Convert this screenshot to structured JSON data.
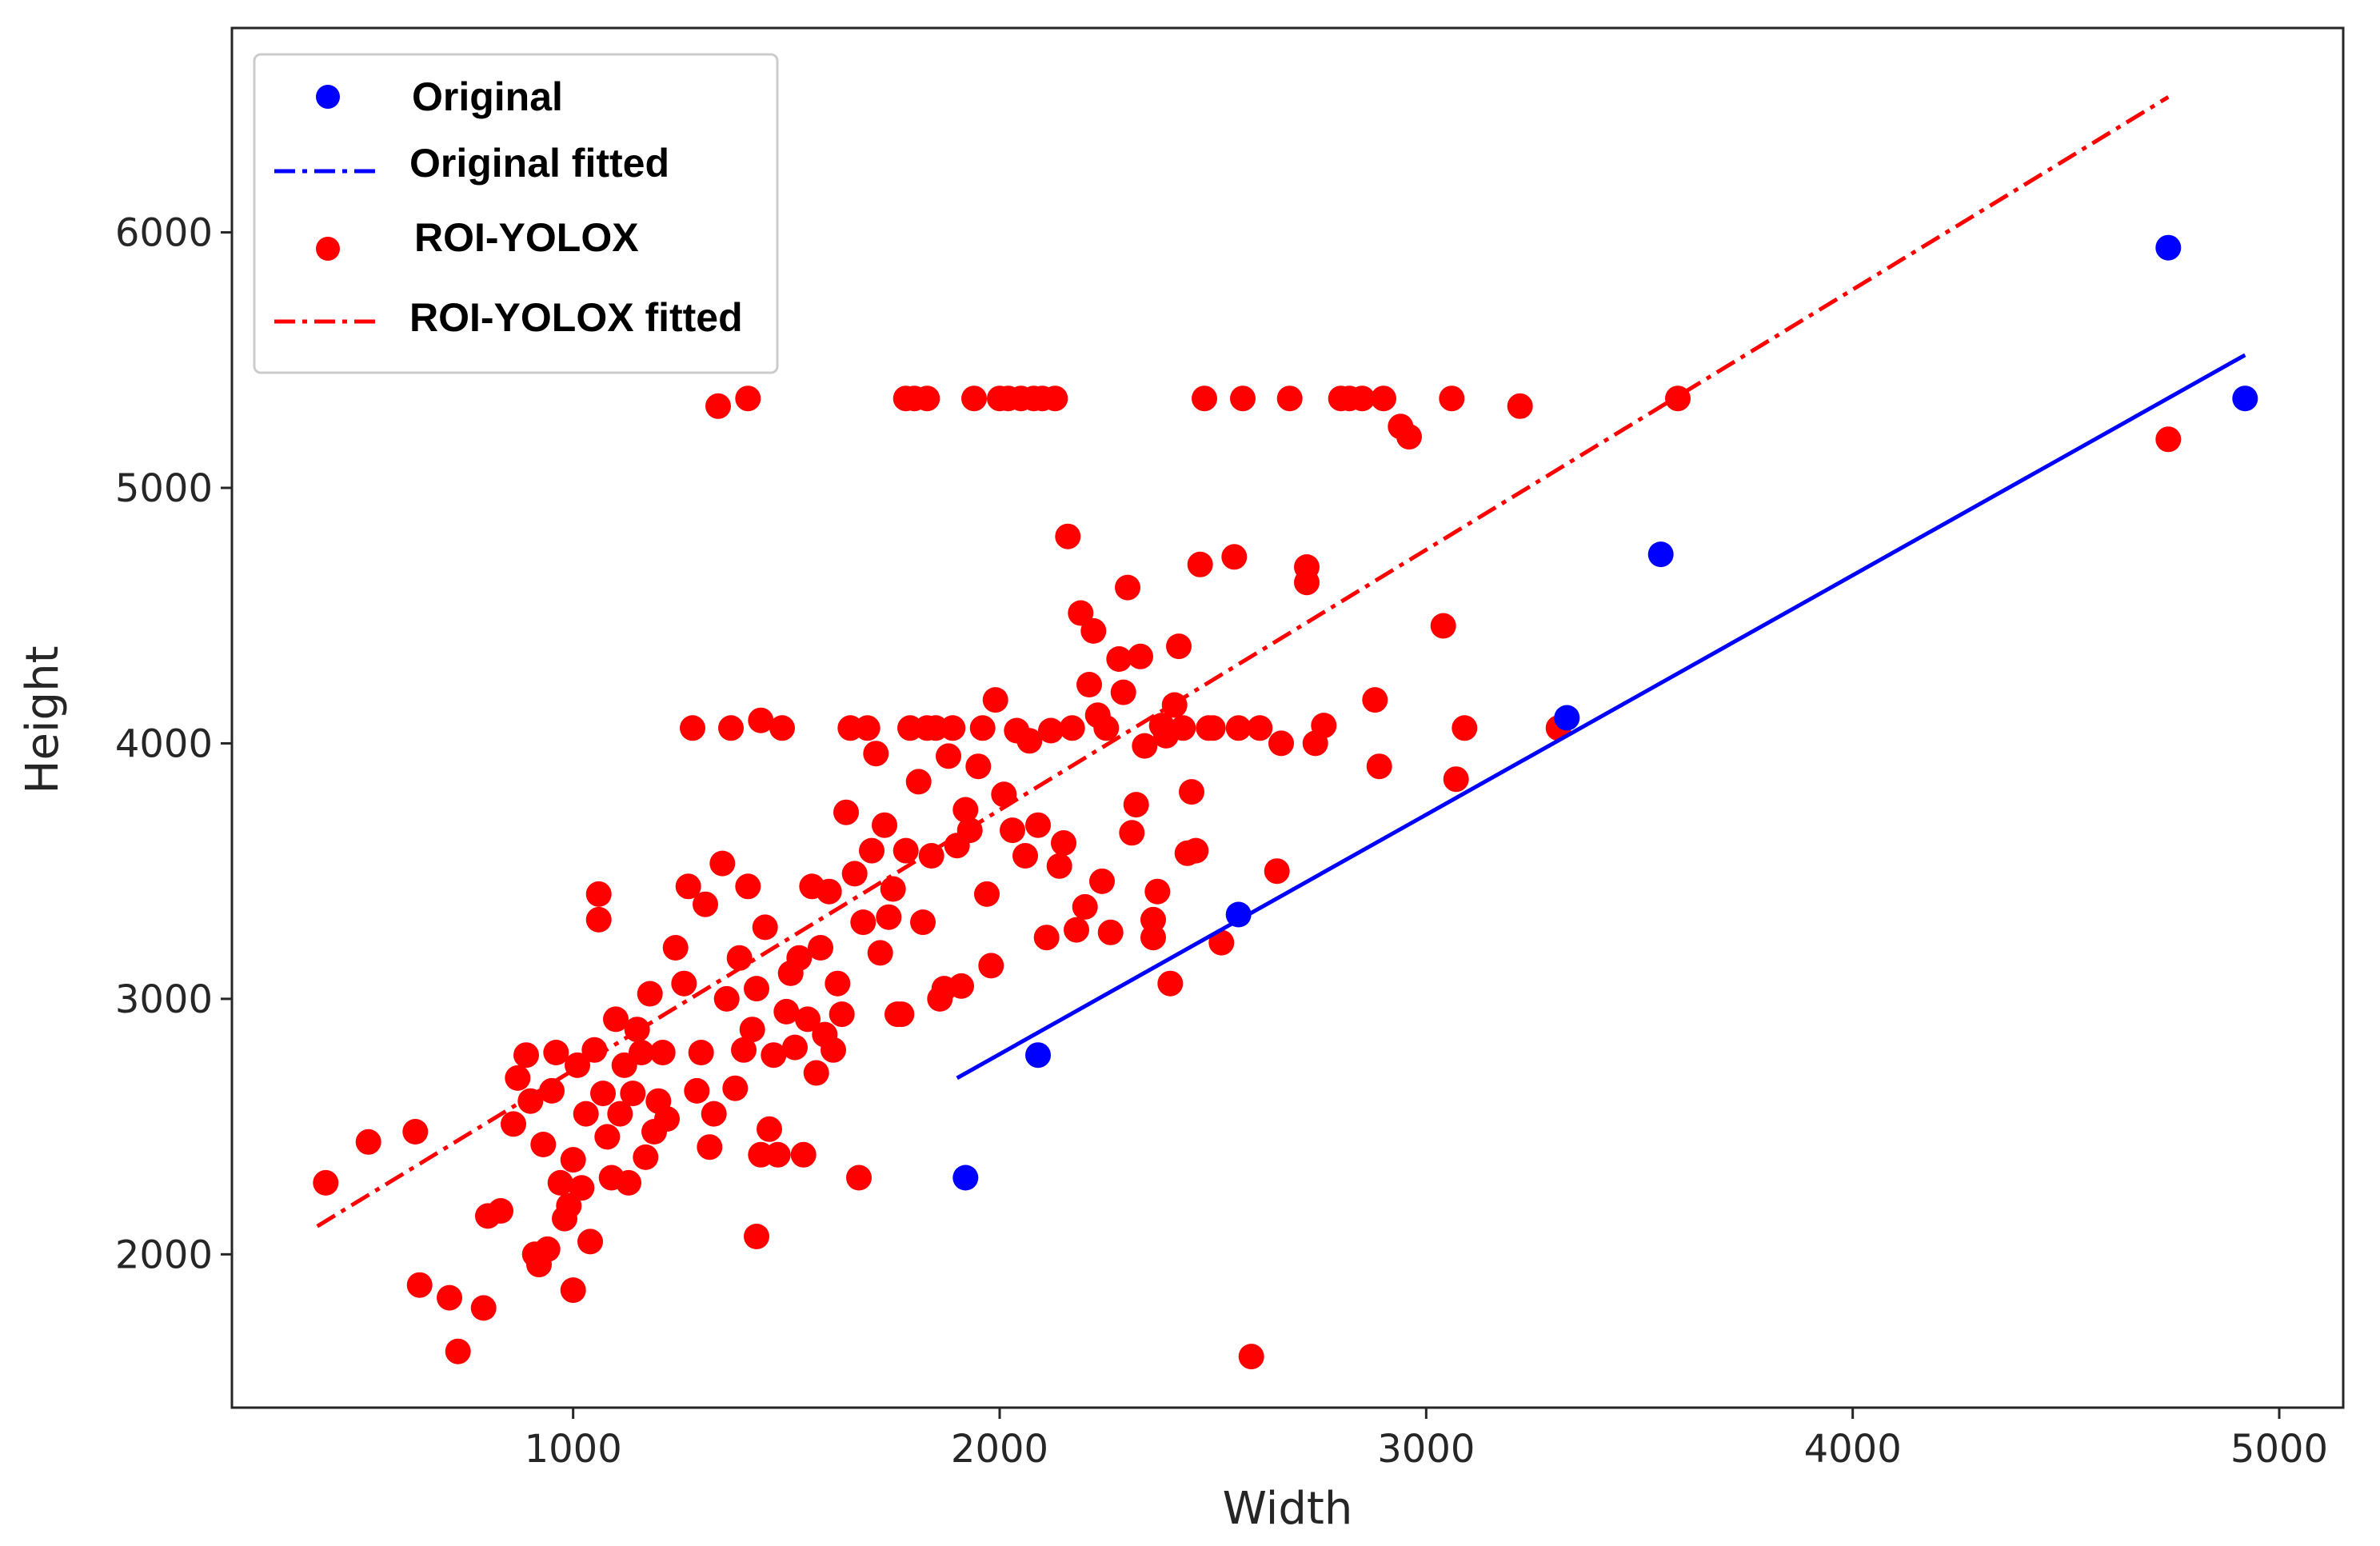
{
  "chart_data": {
    "type": "scatter",
    "xlabel": "Width",
    "ylabel": "Height",
    "xlim": [
      200,
      5150
    ],
    "ylim": [
      1400,
      6800
    ],
    "xticks": [
      1000,
      2000,
      3000,
      4000,
      5000
    ],
    "yticks": [
      2000,
      3000,
      4000,
      5000,
      6000
    ],
    "grid": false,
    "legend_position": "top-left",
    "legend": [
      {
        "label": "Original",
        "kind": "marker",
        "color": "#0000ff"
      },
      {
        "label": "Original fitted",
        "kind": "line",
        "color": "#0000ff"
      },
      {
        "label": "ROI-YOLOX",
        "kind": "marker",
        "color": "#ff0000"
      },
      {
        "label": "ROI-YOLOX fitted",
        "kind": "line",
        "color": "#ff0000"
      }
    ],
    "series": [
      {
        "name": "Original",
        "color": "#0000ff",
        "points": [
          [
            1920,
            2300
          ],
          [
            2090,
            2780
          ],
          [
            2560,
            3330
          ],
          [
            3330,
            4100
          ],
          [
            3550,
            4740
          ],
          [
            4740,
            5940
          ],
          [
            4920,
            5350
          ]
        ]
      },
      {
        "name": "Original fitted",
        "color": "#0000ff",
        "line": [
          [
            1900,
            2690
          ],
          [
            4920,
            5520
          ]
        ]
      },
      {
        "name": "ROI-YOLOX",
        "color": "#ff0000",
        "points": [
          [
            420,
            2280
          ],
          [
            520,
            2440
          ],
          [
            630,
            2480
          ],
          [
            640,
            1880
          ],
          [
            710,
            1830
          ],
          [
            730,
            1620
          ],
          [
            790,
            1790
          ],
          [
            800,
            2150
          ],
          [
            830,
            2170
          ],
          [
            860,
            2510
          ],
          [
            870,
            2690
          ],
          [
            890,
            2780
          ],
          [
            900,
            2600
          ],
          [
            910,
            2000
          ],
          [
            920,
            1960
          ],
          [
            930,
            2430
          ],
          [
            940,
            2020
          ],
          [
            950,
            2640
          ],
          [
            960,
            2790
          ],
          [
            970,
            2280
          ],
          [
            980,
            2140
          ],
          [
            990,
            2190
          ],
          [
            1000,
            2370
          ],
          [
            1000,
            1860
          ],
          [
            1010,
            2740
          ],
          [
            1020,
            2260
          ],
          [
            1030,
            2550
          ],
          [
            1040,
            2050
          ],
          [
            1050,
            2800
          ],
          [
            1060,
            3310
          ],
          [
            1060,
            3410
          ],
          [
            1070,
            2630
          ],
          [
            1080,
            2460
          ],
          [
            1090,
            2300
          ],
          [
            1100,
            2920
          ],
          [
            1110,
            2550
          ],
          [
            1120,
            2740
          ],
          [
            1130,
            2280
          ],
          [
            1140,
            2630
          ],
          [
            1150,
            2880
          ],
          [
            1160,
            2790
          ],
          [
            1170,
            2380
          ],
          [
            1180,
            3020
          ],
          [
            1190,
            2480
          ],
          [
            1200,
            2600
          ],
          [
            1210,
            2790
          ],
          [
            1220,
            2530
          ],
          [
            1240,
            3200
          ],
          [
            1260,
            3060
          ],
          [
            1270,
            3440
          ],
          [
            1280,
            4060
          ],
          [
            1290,
            2640
          ],
          [
            1300,
            2790
          ],
          [
            1310,
            3370
          ],
          [
            1320,
            2420
          ],
          [
            1330,
            2550
          ],
          [
            1340,
            5320
          ],
          [
            1350,
            3530
          ],
          [
            1360,
            3000
          ],
          [
            1370,
            4060
          ],
          [
            1380,
            2650
          ],
          [
            1390,
            3160
          ],
          [
            1400,
            2800
          ],
          [
            1410,
            3440
          ],
          [
            1410,
            5350
          ],
          [
            1420,
            2880
          ],
          [
            1430,
            3040
          ],
          [
            1430,
            2070
          ],
          [
            1440,
            4090
          ],
          [
            1440,
            2390
          ],
          [
            1450,
            3280
          ],
          [
            1460,
            2490
          ],
          [
            1470,
            2780
          ],
          [
            1480,
            2390
          ],
          [
            1490,
            4060
          ],
          [
            1500,
            2950
          ],
          [
            1510,
            3100
          ],
          [
            1520,
            2810
          ],
          [
            1530,
            3160
          ],
          [
            1540,
            2390
          ],
          [
            1550,
            2920
          ],
          [
            1560,
            3440
          ],
          [
            1570,
            2710
          ],
          [
            1580,
            3200
          ],
          [
            1590,
            2860
          ],
          [
            1600,
            3420
          ],
          [
            1610,
            2800
          ],
          [
            1620,
            3060
          ],
          [
            1630,
            2940
          ],
          [
            1640,
            3730
          ],
          [
            1650,
            4060
          ],
          [
            1660,
            3490
          ],
          [
            1670,
            2300
          ],
          [
            1680,
            3300
          ],
          [
            1690,
            4060
          ],
          [
            1700,
            3580
          ],
          [
            1710,
            3960
          ],
          [
            1720,
            3180
          ],
          [
            1730,
            3680
          ],
          [
            1740,
            3320
          ],
          [
            1750,
            3430
          ],
          [
            1760,
            2940
          ],
          [
            1770,
            2940
          ],
          [
            1780,
            3580
          ],
          [
            1780,
            5350
          ],
          [
            1790,
            4060
          ],
          [
            1800,
            5350
          ],
          [
            1810,
            3850
          ],
          [
            1820,
            3300
          ],
          [
            1830,
            5350
          ],
          [
            1830,
            4060
          ],
          [
            1840,
            3560
          ],
          [
            1850,
            4060
          ],
          [
            1860,
            3000
          ],
          [
            1870,
            3040
          ],
          [
            1880,
            3950
          ],
          [
            1890,
            4060
          ],
          [
            1900,
            3600
          ],
          [
            1910,
            3050
          ],
          [
            1920,
            3740
          ],
          [
            1930,
            3660
          ],
          [
            1940,
            5350
          ],
          [
            1950,
            3910
          ],
          [
            1960,
            4060
          ],
          [
            1970,
            3410
          ],
          [
            1980,
            3130
          ],
          [
            1990,
            4170
          ],
          [
            2000,
            5350
          ],
          [
            2010,
            3800
          ],
          [
            2020,
            5350
          ],
          [
            2030,
            3660
          ],
          [
            2040,
            4050
          ],
          [
            2050,
            5350
          ],
          [
            2060,
            3560
          ],
          [
            2070,
            4010
          ],
          [
            2080,
            5350
          ],
          [
            2090,
            3680
          ],
          [
            2100,
            5350
          ],
          [
            2110,
            3240
          ],
          [
            2120,
            4050
          ],
          [
            2130,
            5350
          ],
          [
            2140,
            3520
          ],
          [
            2150,
            3610
          ],
          [
            2160,
            4810
          ],
          [
            2170,
            4060
          ],
          [
            2180,
            3270
          ],
          [
            2190,
            4510
          ],
          [
            2200,
            3360
          ],
          [
            2210,
            4230
          ],
          [
            2220,
            4440
          ],
          [
            2230,
            4110
          ],
          [
            2240,
            3460
          ],
          [
            2250,
            4060
          ],
          [
            2260,
            3260
          ],
          [
            2280,
            4330
          ],
          [
            2290,
            4200
          ],
          [
            2300,
            4610
          ],
          [
            2310,
            3650
          ],
          [
            2320,
            3760
          ],
          [
            2330,
            4340
          ],
          [
            2340,
            3990
          ],
          [
            2360,
            3310
          ],
          [
            2360,
            3240
          ],
          [
            2370,
            3420
          ],
          [
            2380,
            4070
          ],
          [
            2390,
            4030
          ],
          [
            2400,
            3060
          ],
          [
            2410,
            4150
          ],
          [
            2420,
            4380
          ],
          [
            2430,
            4060
          ],
          [
            2440,
            3570
          ],
          [
            2450,
            3810
          ],
          [
            2460,
            3580
          ],
          [
            2470,
            4700
          ],
          [
            2480,
            5350
          ],
          [
            2490,
            4060
          ],
          [
            2500,
            4060
          ],
          [
            2520,
            3220
          ],
          [
            2550,
            4730
          ],
          [
            2560,
            4060
          ],
          [
            2570,
            5350
          ],
          [
            2590,
            1600
          ],
          [
            2610,
            4060
          ],
          [
            2650,
            3500
          ],
          [
            2660,
            4000
          ],
          [
            2680,
            5350
          ],
          [
            2720,
            4690
          ],
          [
            2720,
            4630
          ],
          [
            2740,
            4000
          ],
          [
            2760,
            4070
          ],
          [
            2800,
            5350
          ],
          [
            2820,
            5350
          ],
          [
            2850,
            5350
          ],
          [
            2880,
            4170
          ],
          [
            2890,
            3910
          ],
          [
            2900,
            5350
          ],
          [
            2940,
            5240
          ],
          [
            2960,
            5200
          ],
          [
            3040,
            4460
          ],
          [
            3060,
            5350
          ],
          [
            3070,
            3860
          ],
          [
            3090,
            4060
          ],
          [
            3220,
            5320
          ],
          [
            3310,
            4060
          ],
          [
            3590,
            5350
          ],
          [
            4740,
            5190
          ]
        ]
      },
      {
        "name": "ROI-YOLOX fitted",
        "color": "#ff0000",
        "line": [
          [
            400,
            2110
          ],
          [
            4740,
            6530
          ]
        ]
      }
    ]
  }
}
